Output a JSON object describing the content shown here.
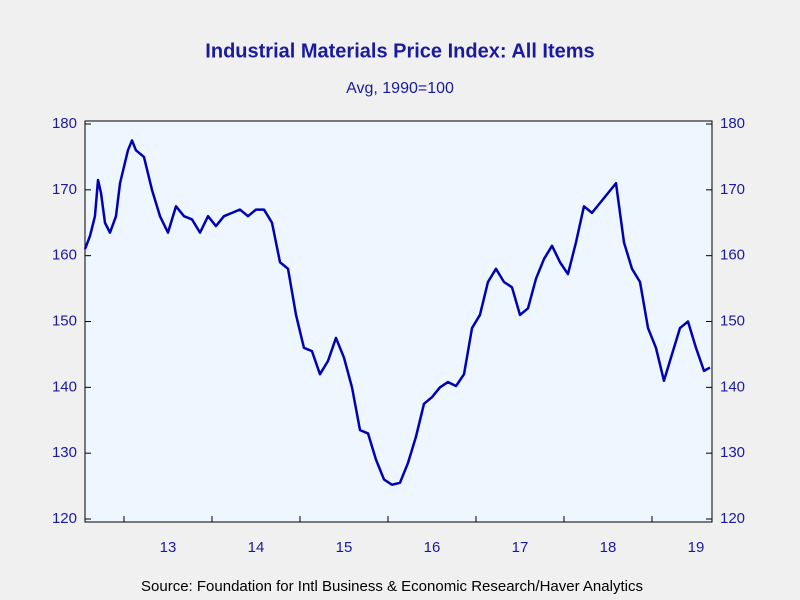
{
  "chart_data": {
    "type": "line",
    "title": "Industrial Materials Price Index: All Items",
    "subtitle": "Avg, 1990=100",
    "source": "Source:  Foundation for Intl Business & Economic Research/Haver Analytics",
    "x": [
      2012.557,
      2012.614,
      2012.67,
      2012.705,
      2012.739,
      2012.784,
      2012.841,
      2012.909,
      2012.955,
      2013.045,
      2013.091,
      2013.136,
      2013.227,
      2013.318,
      2013.409,
      2013.5,
      2013.591,
      2013.682,
      2013.773,
      2013.864,
      2013.955,
      2014.045,
      2014.136,
      2014.227,
      2014.318,
      2014.409,
      2014.5,
      2014.591,
      2014.682,
      2014.773,
      2014.864,
      2014.955,
      2015.045,
      2015.136,
      2015.227,
      2015.318,
      2015.409,
      2015.5,
      2015.591,
      2015.682,
      2015.773,
      2015.864,
      2015.955,
      2016.045,
      2016.136,
      2016.227,
      2016.318,
      2016.409,
      2016.5,
      2016.591,
      2016.682,
      2016.773,
      2016.864,
      2016.955,
      2017.045,
      2017.136,
      2017.227,
      2017.318,
      2017.409,
      2017.5,
      2017.591,
      2017.682,
      2017.773,
      2017.864,
      2017.955,
      2018.045,
      2018.136,
      2018.227,
      2018.318,
      2018.409,
      2018.5,
      2018.591,
      2018.682,
      2018.773,
      2018.864,
      2018.955,
      2019.045,
      2019.136,
      2019.227,
      2019.318,
      2019.409,
      2019.5,
      2019.591,
      2019.659
    ],
    "series": [
      {
        "color": "#0000b4",
        "values": [
          161,
          163,
          166,
          171.5,
          169.5,
          165,
          163.5,
          166,
          171,
          176,
          177.5,
          176,
          175,
          170,
          166,
          163.5,
          167.5,
          166,
          165.5,
          163.5,
          166,
          164.5,
          166,
          166.5,
          167,
          166,
          167,
          167,
          165,
          159,
          158,
          151,
          146,
          145.5,
          142,
          144,
          147.5,
          144.5,
          140,
          133.5,
          133,
          129,
          126,
          125.2,
          125.5,
          128.5,
          132.5,
          137.5,
          138.5,
          140,
          140.8,
          140.2,
          142,
          149,
          151,
          156,
          158,
          156,
          155.2,
          151,
          152,
          156.5,
          159.5,
          161.5,
          159,
          157.2,
          162,
          167.5,
          166.5,
          168,
          169.5,
          171,
          162,
          158,
          156,
          149,
          146,
          141,
          145,
          149,
          150,
          146,
          142.5,
          143
        ]
      }
    ],
    "xlim": [
      2012.557,
      2019.682
    ],
    "xticks": [
      {
        "value": 2013.5,
        "label": "13"
      },
      {
        "value": 2014.5,
        "label": "14"
      },
      {
        "value": 2015.5,
        "label": "15"
      },
      {
        "value": 2016.5,
        "label": "16"
      },
      {
        "value": 2017.5,
        "label": "17"
      },
      {
        "value": 2018.5,
        "label": "18"
      },
      {
        "value": 2019.5,
        "label": "19"
      }
    ],
    "ylim": [
      120,
      180
    ],
    "yticks": [
      120,
      130,
      140,
      150,
      160,
      170,
      180
    ],
    "y2lim": [
      120,
      180
    ],
    "y2ticks": [
      120,
      130,
      140,
      150,
      160,
      170,
      180
    ],
    "grid": false
  }
}
